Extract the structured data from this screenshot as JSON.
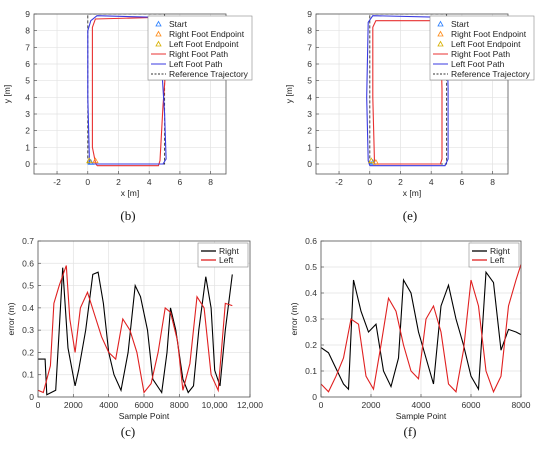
{
  "captions": [
    "(b)",
    "(e)",
    "(c)",
    "(f)"
  ],
  "chart_data": [
    {
      "type": "line",
      "id": "b",
      "xlabel": "x [m]",
      "ylabel": "y [m]",
      "xlim": [
        -3.5,
        9
      ],
      "ylim": [
        -0.6,
        9
      ],
      "xticks": [
        "-2",
        "0",
        "2",
        "4",
        "6",
        "8"
      ],
      "xtick_values": [
        -2,
        0,
        2,
        4,
        6,
        8
      ],
      "yticks": [
        "0",
        "1",
        "2",
        "3",
        "4",
        "5",
        "6",
        "7",
        "8",
        "9"
      ],
      "ytick_values": [
        0,
        1,
        2,
        3,
        4,
        5,
        6,
        7,
        8,
        9
      ],
      "grid": true,
      "legend_position": "top-right",
      "legend": [
        "Start",
        "Right Foot Endpoint",
        "Left Foot Endpoint",
        "Right Foot Path",
        "Left Foot Path",
        "Reference Trajectory"
      ],
      "start_point": {
        "x": 0.2,
        "y": 0.1
      },
      "right_endpoint": {
        "x": 0.5,
        "y": 0.2
      },
      "left_endpoint": {
        "x": 0.1,
        "y": 0.2
      },
      "series": [
        {
          "name": "Reference Trajectory",
          "color": "#333333",
          "dashed": true,
          "x": [
            0,
            5,
            5,
            0,
            0
          ],
          "y": [
            0,
            0,
            9,
            9,
            0
          ]
        },
        {
          "name": "Right Foot Path",
          "color": "#e83030",
          "x": [
            0.6,
            4.6,
            4.7,
            4.9,
            5.1,
            5.2,
            5.0,
            4.6,
            0.5,
            0.3,
            0.3,
            0.3,
            0.5,
            0.6
          ],
          "y": [
            -0.1,
            -0.1,
            0.2,
            3.5,
            6.0,
            8.3,
            8.6,
            8.8,
            8.7,
            8.2,
            5.0,
            1.0,
            0.1,
            -0.1
          ]
        },
        {
          "name": "Left Foot Path",
          "color": "#3a3ae0",
          "x": [
            0.1,
            4.9,
            5.1,
            5.0,
            4.8,
            4.6,
            4.4,
            0.6,
            0.2,
            0.0,
            0.0,
            0.1,
            0.1
          ],
          "y": [
            0.0,
            0.0,
            0.3,
            3.0,
            6.0,
            8.2,
            8.8,
            8.9,
            8.6,
            8.0,
            4.0,
            0.5,
            0.0
          ]
        }
      ]
    },
    {
      "type": "line",
      "id": "e",
      "xlabel": "x [m]",
      "ylabel": "y [m]",
      "xlim": [
        -3.5,
        9
      ],
      "ylim": [
        -0.6,
        9
      ],
      "xticks": [
        "-2",
        "0",
        "2",
        "4",
        "6",
        "8"
      ],
      "xtick_values": [
        -2,
        0,
        2,
        4,
        6,
        8
      ],
      "yticks": [
        "0",
        "1",
        "2",
        "3",
        "4",
        "5",
        "6",
        "7",
        "8",
        "9"
      ],
      "ytick_values": [
        0,
        1,
        2,
        3,
        4,
        5,
        6,
        7,
        8,
        9
      ],
      "grid": true,
      "legend_position": "top-right",
      "legend": [
        "Start",
        "Right Foot Endpoint",
        "Left Foot Endpoint",
        "Right Foot Path",
        "Left Foot Path",
        "Reference Trajectory"
      ],
      "start_point": {
        "x": 0.2,
        "y": 0.1
      },
      "right_endpoint": {
        "x": 0.4,
        "y": 0.1
      },
      "left_endpoint": {
        "x": 0.1,
        "y": 0.2
      },
      "series": [
        {
          "name": "Reference Trajectory",
          "color": "#333333",
          "dashed": true,
          "x": [
            0,
            5,
            5,
            0,
            0
          ],
          "y": [
            0,
            0,
            9,
            9,
            0
          ]
        },
        {
          "name": "Right Foot Path",
          "color": "#e83030",
          "x": [
            0.3,
            4.6,
            4.7,
            4.7,
            4.6,
            4.5,
            0.4,
            0.2,
            0.2,
            0.3,
            0.3
          ],
          "y": [
            0.0,
            0.0,
            0.3,
            4.5,
            8.2,
            8.6,
            8.6,
            8.2,
            4.0,
            0.3,
            0.0
          ]
        },
        {
          "name": "Left Foot Path",
          "color": "#3a3ae0",
          "x": [
            0.0,
            4.9,
            5.1,
            5.1,
            5.0,
            4.8,
            0.2,
            -0.1,
            -0.2,
            -0.1,
            0.0
          ],
          "y": [
            -0.1,
            -0.1,
            0.3,
            4.5,
            8.4,
            8.8,
            8.9,
            8.5,
            4.0,
            0.2,
            -0.1
          ]
        }
      ]
    },
    {
      "type": "line",
      "id": "c",
      "xlabel": "Sample Point",
      "ylabel": "error (m)",
      "xlim": [
        0,
        12000
      ],
      "ylim": [
        0,
        0.7
      ],
      "xticks": [
        "0",
        "2000",
        "4000",
        "6000",
        "8000",
        "10,000",
        "12,000"
      ],
      "xtick_values": [
        0,
        2000,
        4000,
        6000,
        8000,
        10000,
        12000
      ],
      "yticks": [
        "0",
        "0.1",
        "0.2",
        "0.3",
        "0.4",
        "0.5",
        "0.6",
        "0.7"
      ],
      "ytick_values": [
        0,
        0.1,
        0.2,
        0.3,
        0.4,
        0.5,
        0.6,
        0.7
      ],
      "grid": true,
      "legend_position": "top-right",
      "series": [
        {
          "name": "Right",
          "color": "#000000",
          "x": [
            0,
            400,
            500,
            1000,
            1200,
            1400,
            1700,
            2100,
            2300,
            2700,
            3100,
            3400,
            3700,
            4000,
            4300,
            4700,
            5100,
            5500,
            5800,
            6200,
            6500,
            7000,
            7300,
            7500,
            7800,
            8200,
            8500,
            8800,
            9100,
            9500,
            9800,
            10000,
            10300,
            10600,
            11000
          ],
          "y": [
            0.17,
            0.17,
            0.01,
            0.03,
            0.3,
            0.58,
            0.22,
            0.05,
            0.12,
            0.3,
            0.55,
            0.56,
            0.42,
            0.2,
            0.1,
            0.03,
            0.2,
            0.5,
            0.45,
            0.3,
            0.08,
            0.02,
            0.2,
            0.4,
            0.3,
            0.08,
            0.02,
            0.05,
            0.3,
            0.54,
            0.4,
            0.12,
            0.05,
            0.3,
            0.55
          ]
        },
        {
          "name": "Left",
          "color": "#e02020",
          "x": [
            0,
            300,
            700,
            900,
            1200,
            1600,
            1800,
            2100,
            2400,
            2800,
            3200,
            3600,
            4000,
            4400,
            4800,
            5200,
            5600,
            6000,
            6400,
            6800,
            7200,
            7500,
            7900,
            8200,
            8600,
            9000,
            9400,
            9800,
            10200,
            10600,
            11000
          ],
          "y": [
            0.03,
            0.02,
            0.14,
            0.42,
            0.5,
            0.59,
            0.35,
            0.2,
            0.4,
            0.47,
            0.37,
            0.27,
            0.2,
            0.17,
            0.35,
            0.3,
            0.2,
            0.02,
            0.06,
            0.2,
            0.4,
            0.38,
            0.25,
            0.03,
            0.15,
            0.45,
            0.4,
            0.1,
            0.03,
            0.42,
            0.41
          ]
        }
      ]
    },
    {
      "type": "line",
      "id": "f",
      "xlabel": "Sample Point",
      "ylabel": "error (m)",
      "xlim": [
        0,
        8000
      ],
      "ylim": [
        0,
        0.6
      ],
      "xticks": [
        "0",
        "2000",
        "4000",
        "6000",
        "8000"
      ],
      "xtick_values": [
        0,
        2000,
        4000,
        6000,
        8000
      ],
      "yticks": [
        "0",
        "0.1",
        "0.2",
        "0.3",
        "0.4",
        "0.5",
        "0.6"
      ],
      "ytick_values": [
        0,
        0.1,
        0.2,
        0.3,
        0.4,
        0.5,
        0.6
      ],
      "grid": true,
      "legend_position": "top-right",
      "series": [
        {
          "name": "Right",
          "color": "#000000",
          "x": [
            0,
            300,
            500,
            700,
            900,
            1100,
            1300,
            1600,
            1900,
            2200,
            2500,
            2800,
            3100,
            3300,
            3600,
            3900,
            4200,
            4500,
            4800,
            5100,
            5400,
            5700,
            6000,
            6300,
            6600,
            6900,
            7200,
            7500,
            7800,
            8000
          ],
          "y": [
            0.19,
            0.17,
            0.13,
            0.09,
            0.05,
            0.03,
            0.45,
            0.33,
            0.25,
            0.28,
            0.1,
            0.04,
            0.15,
            0.45,
            0.4,
            0.25,
            0.15,
            0.05,
            0.35,
            0.43,
            0.3,
            0.2,
            0.08,
            0.03,
            0.48,
            0.44,
            0.18,
            0.26,
            0.25,
            0.24
          ]
        },
        {
          "name": "Left",
          "color": "#e02020",
          "x": [
            0,
            300,
            600,
            900,
            1200,
            1500,
            1800,
            2100,
            2400,
            2700,
            3000,
            3300,
            3600,
            3900,
            4200,
            4500,
            4800,
            5100,
            5400,
            5700,
            6000,
            6300,
            6600,
            6900,
            7200,
            7500,
            7800,
            8000
          ],
          "y": [
            0.05,
            0.02,
            0.08,
            0.15,
            0.3,
            0.28,
            0.08,
            0.03,
            0.2,
            0.38,
            0.33,
            0.2,
            0.1,
            0.07,
            0.3,
            0.35,
            0.25,
            0.05,
            0.02,
            0.18,
            0.45,
            0.35,
            0.1,
            0.02,
            0.08,
            0.35,
            0.45,
            0.51
          ]
        }
      ]
    }
  ]
}
